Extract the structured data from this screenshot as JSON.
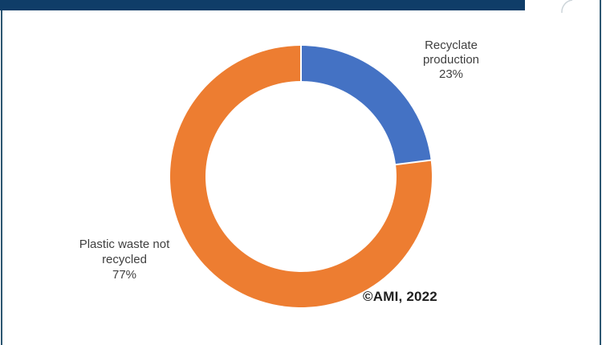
{
  "page": {
    "background": "#ffffff",
    "top_bar_color": "#0f3d68",
    "border_color": "#2b5570"
  },
  "chart_data": {
    "type": "pie",
    "subtype": "donut",
    "title": "",
    "legend_position": "none",
    "start_angle_deg": 0,
    "hole_ratio": 0.73,
    "segments": [
      {
        "label": "Recyclate production",
        "value": 23,
        "color": "#4472C4",
        "data_label": "Recyclate\nproduction\n23%"
      },
      {
        "label": "Plastic waste not recycled",
        "value": 77,
        "color": "#ED7D31",
        "data_label": "Plastic waste not\nrecycled\n77%"
      }
    ],
    "segment_gap_color": "#ffffff",
    "annotation": "©AMI, 2022"
  }
}
